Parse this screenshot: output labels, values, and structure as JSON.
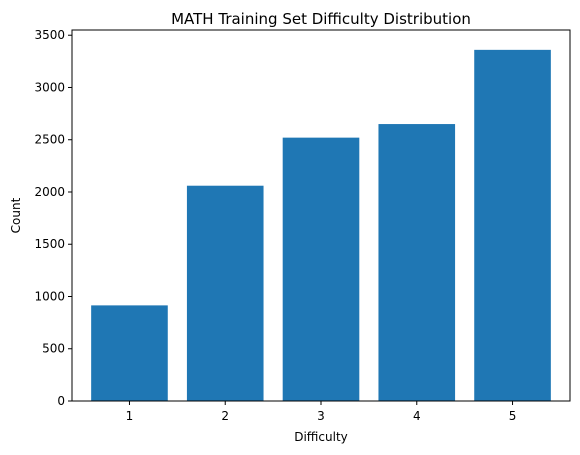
{
  "chart_data": {
    "type": "bar",
    "title": "MATH Training Set Difficulty Distribution",
    "xlabel": "Difficulty",
    "ylabel": "Count",
    "categories": [
      "1",
      "2",
      "3",
      "4",
      "5"
    ],
    "values": [
      915,
      2060,
      2520,
      2650,
      3360
    ],
    "ylim": [
      0,
      3550
    ],
    "yticks": [
      0,
      500,
      1000,
      1500,
      2000,
      2500,
      3000,
      3500
    ],
    "grid": false,
    "bar_color": "#1f77b4"
  }
}
